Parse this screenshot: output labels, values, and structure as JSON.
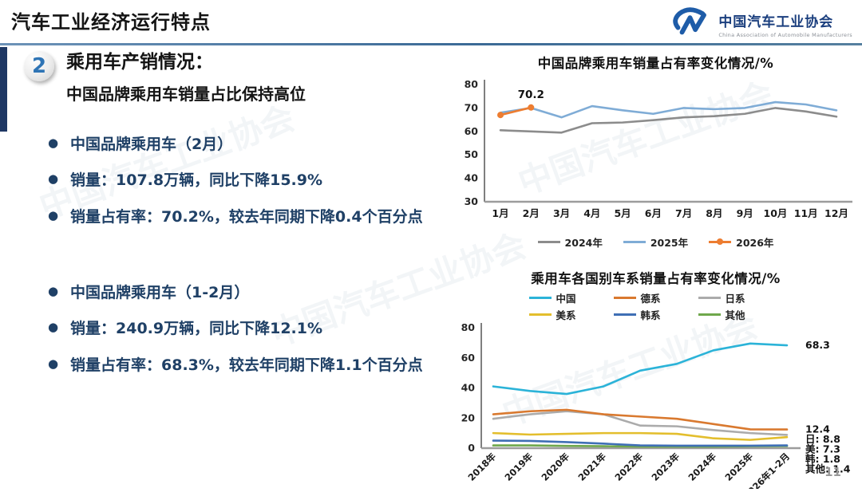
{
  "header": {
    "title": "汽车工业经济运行特点",
    "logo": {
      "name": "中国汽车工业协会",
      "tagline": "China Association of Automobile Manufacturers"
    }
  },
  "watermark_text": "中国汽车工业协会",
  "section": {
    "number": "2",
    "title": "乘用车产销情况：",
    "subtitle": "中国品牌乘用车销量占比保持高位"
  },
  "bullets_feb": [
    "中国品牌乘用车（2月）",
    "销量：107.8万辆，同比下降15.9%",
    "销量占有率：70.2%，较去年同期下降0.4个百分点"
  ],
  "bullets_janfeb": [
    "中国品牌乘用车（1-2月）",
    "销量：240.9万辆，同比下降12.1%",
    "销量占有率：68.3%，较去年同期下降1.1个百分点"
  ],
  "page_number": "11",
  "chart_data": [
    {
      "type": "line",
      "title": "中国品牌乘用车销量占有率变化情况/%",
      "categories": [
        "1月",
        "2月",
        "3月",
        "4月",
        "5月",
        "6月",
        "7月",
        "8月",
        "9月",
        "10月",
        "11月",
        "12月"
      ],
      "ylim": [
        30,
        80
      ],
      "yticks": [
        80,
        70,
        60,
        50,
        40,
        30
      ],
      "grid": false,
      "legend_position": "bottom",
      "series": [
        {
          "name": "2024年",
          "color": "#8C8C8C",
          "marker": false,
          "values": [
            60.5,
            60.0,
            59.5,
            63.5,
            63.8,
            64.8,
            66.0,
            66.5,
            67.5,
            70.0,
            68.5,
            66.3
          ]
        },
        {
          "name": "2025年",
          "color": "#7FACD6",
          "marker": false,
          "values": [
            68.0,
            70.0,
            66.0,
            70.8,
            69.0,
            67.5,
            70.0,
            69.5,
            70.0,
            72.5,
            71.5,
            69.0
          ]
        },
        {
          "name": "2026年",
          "color": "#ED7D31",
          "marker": true,
          "values": [
            67.0,
            70.2
          ]
        }
      ],
      "annotations": [
        {
          "text": "70.2",
          "series_index": 2,
          "point_index": 1,
          "dx": 0,
          "dy": -12
        }
      ]
    },
    {
      "type": "line",
      "title": "乘用车各国别车系销量占有率变化情况/%",
      "categories": [
        "2018年",
        "2019年",
        "2020年",
        "2021年",
        "2022年",
        "2023年",
        "2024年",
        "2025年",
        "2026年1-2月"
      ],
      "ylim": [
        0,
        80
      ],
      "yticks": [
        80,
        60,
        40,
        20,
        0
      ],
      "grid": false,
      "legend_position": "top",
      "rotate_x_labels": true,
      "draw_reverse": true,
      "series": [
        {
          "name": "中国",
          "color": "#2BB3D8",
          "marker": false,
          "values": [
            41.0,
            38.0,
            36.0,
            41.0,
            51.5,
            56.0,
            65.0,
            69.5,
            68.3
          ]
        },
        {
          "name": "德系",
          "color": "#D9792F",
          "marker": false,
          "values": [
            22.5,
            24.5,
            25.5,
            22.5,
            21.0,
            19.5,
            16.0,
            12.5,
            12.4
          ]
        },
        {
          "name": "日系",
          "color": "#ABABAB",
          "marker": false,
          "values": [
            19.5,
            22.5,
            24.5,
            22.5,
            15.0,
            14.5,
            12.0,
            10.0,
            8.8
          ]
        },
        {
          "name": "美系",
          "color": "#E3BE2D",
          "marker": false,
          "values": [
            10.0,
            9.0,
            9.5,
            10.0,
            10.0,
            9.5,
            6.5,
            5.5,
            7.3
          ]
        },
        {
          "name": "韩系",
          "color": "#3F6FB5",
          "marker": false,
          "values": [
            5.0,
            4.8,
            4.0,
            3.0,
            1.8,
            1.6,
            1.6,
            1.6,
            1.8
          ]
        },
        {
          "name": "其他",
          "color": "#6FA84C",
          "marker": false,
          "values": [
            1.8,
            1.8,
            1.5,
            1.3,
            1.0,
            1.0,
            1.0,
            1.3,
            1.4
          ]
        }
      ],
      "end_labels": [
        {
          "text": "68.3",
          "value": 68.3
        },
        {
          "text": "12.4",
          "value": 12.4
        },
        {
          "text": "日: 8.8",
          "value": 8.8
        },
        {
          "text": "美: 7.3",
          "value": 7.3
        },
        {
          "text": "韩: 1.8",
          "value": 1.8
        },
        {
          "text": "其他: 1.4",
          "value": 1.4
        }
      ]
    }
  ]
}
